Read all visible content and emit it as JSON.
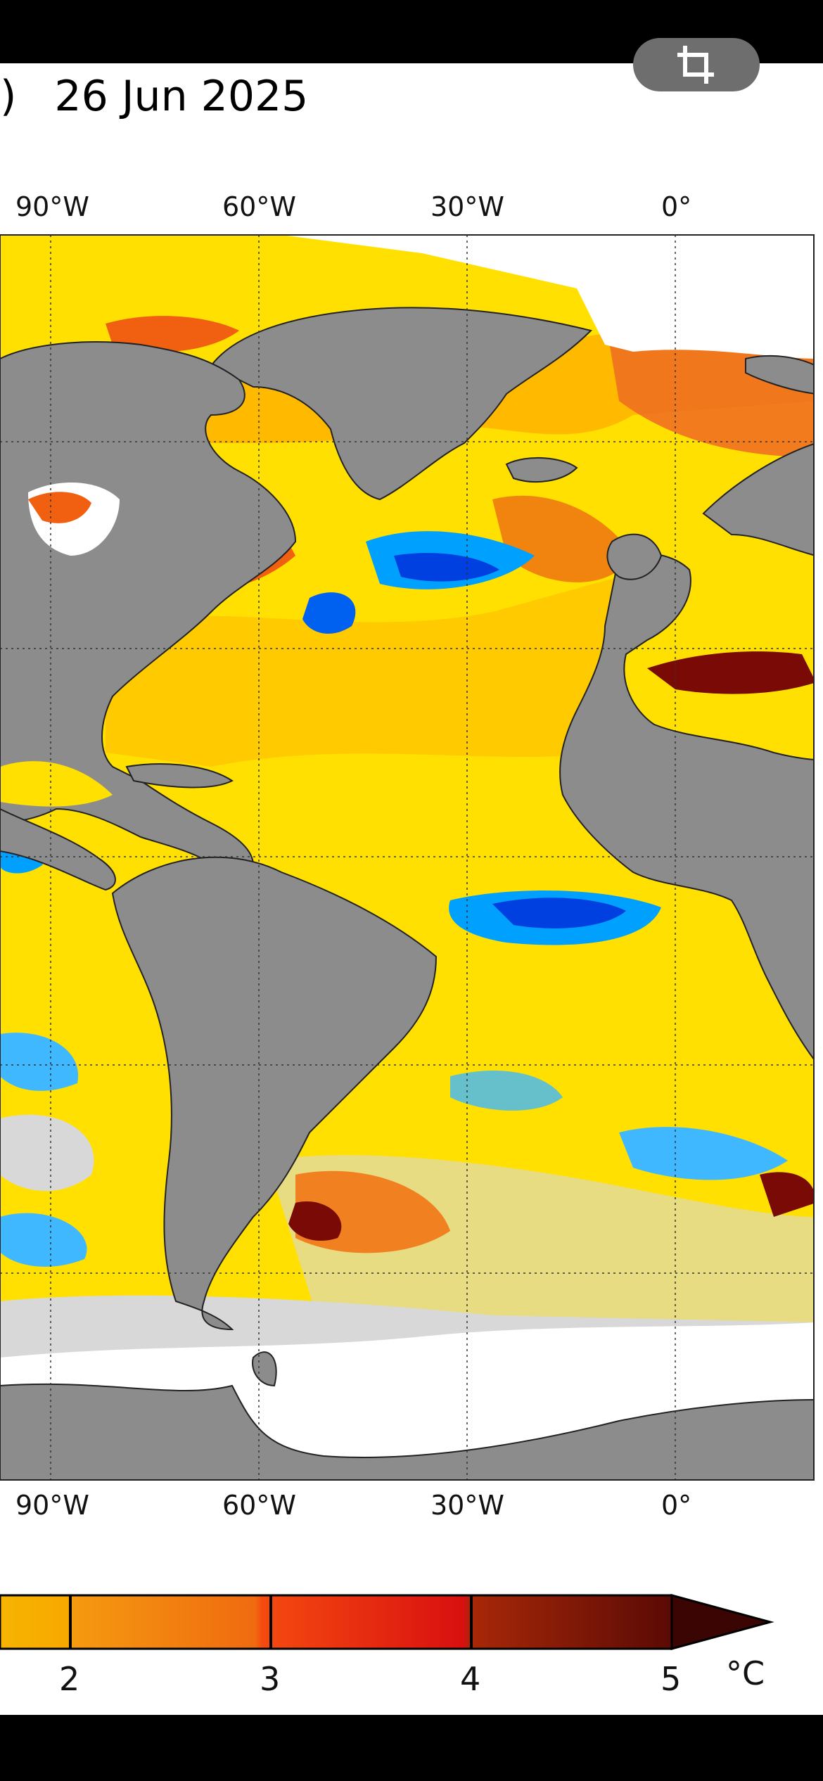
{
  "header": {
    "title_fragment": ")",
    "date": "26 Jun 2025"
  },
  "toolbar": {
    "crop_icon": "crop-icon"
  },
  "map": {
    "lon_labels_top": [
      "90°W",
      "60°W",
      "30°W",
      "0°"
    ],
    "lon_labels_bottom": [
      "90°W",
      "60°W",
      "30°W",
      "0°"
    ],
    "colors": {
      "land": "#8c8c8c",
      "ice": "#ffffff",
      "neutral": "#d8d8d8",
      "anom_low": "#ffe000",
      "anom_mid": "#ffb000",
      "anom_high": "#f06010",
      "anom_max": "#7a0a05",
      "cold": "#00a0ff",
      "cold_deep": "#0040e0"
    }
  },
  "colorbar": {
    "ticks": [
      "2",
      "3",
      "4",
      "5"
    ],
    "unit": "°C"
  }
}
